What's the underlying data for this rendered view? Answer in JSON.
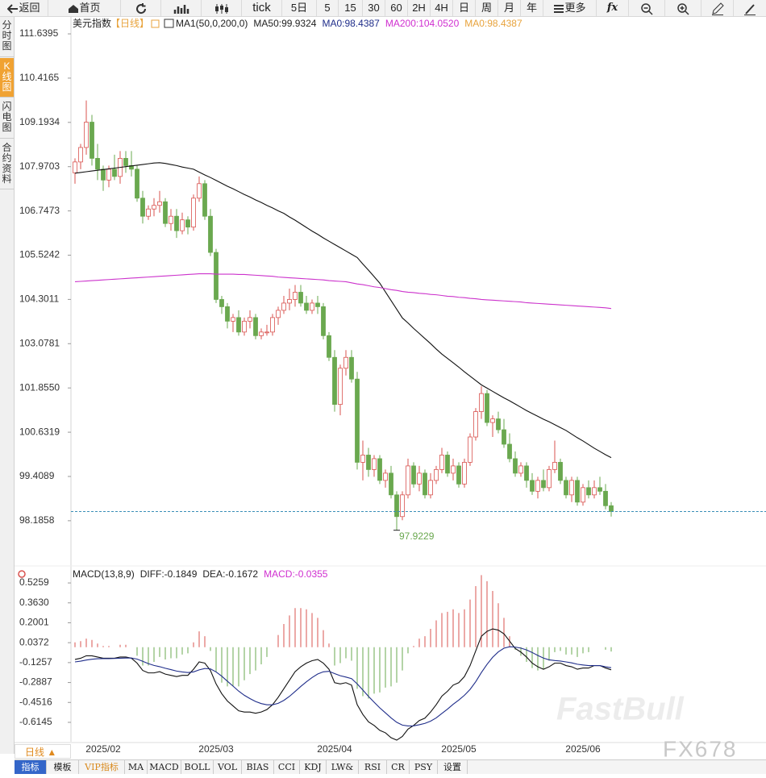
{
  "toolbar": [
    "返回",
    "首页",
    "tick",
    "5日",
    "5",
    "15",
    "30",
    "60",
    "2H",
    "4H",
    "日",
    "周",
    "月",
    "年",
    "更多",
    "fx"
  ],
  "sidebar": [
    "分时图",
    "K线图",
    "闪电图",
    "合约资料"
  ],
  "footer": {
    "period": "日线 ▲",
    "tabs": [
      "指标",
      "模板",
      "VIP指标",
      "MA",
      "MACD",
      "BOLL",
      "VOL",
      "BIAS",
      "CCI",
      "KDJ",
      "LW&",
      "RSI",
      "CR",
      "PSY",
      "设置"
    ]
  },
  "watermark": [
    "FastBull",
    "FX678"
  ],
  "chart_data": [
    {
      "type": "candlestick",
      "title": "美元指数",
      "period": "【日线】",
      "legend": [
        {
          "text": "MA1(50,0,200,0)",
          "color": "#222222"
        },
        {
          "text": "MA50:99.9324",
          "color": "#222222"
        },
        {
          "text": "MA0:98.4387",
          "color": "#1f2d8a"
        },
        {
          "text": "MA200:104.0520",
          "color": "#d02fd0"
        },
        {
          "text": "MA0:98.4387",
          "color": "#e8a33c"
        }
      ],
      "up_color": "#d9534f",
      "down_color": "#6aa84f",
      "categories": [
        null,
        null,
        null,
        null,
        null,
        "2025/02",
        null,
        null,
        null,
        null,
        null,
        null,
        null,
        null,
        null,
        null,
        null,
        null,
        null,
        null,
        null,
        null,
        null,
        null,
        null,
        "2025/03",
        null,
        null,
        null,
        null,
        null,
        null,
        null,
        null,
        null,
        null,
        null,
        null,
        null,
        null,
        null,
        null,
        null,
        null,
        null,
        null,
        "2025/04",
        null,
        null,
        null,
        null,
        null,
        null,
        null,
        null,
        null,
        null,
        null,
        null,
        null,
        null,
        null,
        null,
        null,
        null,
        null,
        null,
        null,
        "2025/05",
        null,
        null,
        null,
        null,
        null,
        null,
        null,
        null,
        null,
        null,
        null,
        null,
        null,
        null,
        null,
        null,
        null,
        null,
        null,
        null,
        null,
        "2025/06",
        null,
        null,
        null,
        null,
        null
      ],
      "open": [
        107.8,
        108.1,
        108.5,
        109.2,
        108.2,
        107.9,
        107.6,
        107.9,
        107.7,
        108.2,
        108.0,
        107.9,
        107.1,
        106.6,
        106.8,
        106.9,
        107.0,
        106.4,
        106.6,
        106.2,
        106.5,
        106.3,
        107.1,
        107.5,
        106.6,
        105.6,
        104.3,
        104.1,
        103.7,
        103.8,
        103.4,
        103.7,
        103.8,
        103.3,
        103.4,
        103.4,
        103.8,
        104.0,
        104.2,
        104.3,
        104.5,
        104.2,
        104.0,
        104.2,
        104.1,
        103.3,
        102.7,
        101.4,
        102.4,
        102.7,
        102.1,
        99.8,
        100.0,
        99.6,
        99.9,
        99.3,
        99.5,
        98.9,
        98.3,
        98.9,
        99.7,
        99.2,
        99.5,
        98.9,
        99.3,
        99.6,
        100.0,
        99.5,
        99.7,
        99.2,
        99.8,
        100.5,
        101.2,
        101.7,
        100.9,
        101.0,
        100.7,
        100.3,
        99.9,
        99.5,
        99.7,
        99.3,
        99.0,
        99.3,
        99.1,
        99.6,
        99.8,
        99.3,
        98.9,
        99.3,
        98.7,
        99.1,
        98.9,
        99.1,
        99.0,
        98.6
      ],
      "high": [
        108.2,
        108.6,
        109.8,
        109.4,
        108.6,
        108.0,
        108.0,
        108.3,
        108.4,
        108.4,
        108.4,
        108.0,
        107.3,
        106.9,
        107.1,
        107.3,
        107.1,
        106.8,
        106.8,
        106.7,
        106.6,
        107.2,
        107.7,
        107.6,
        106.8,
        105.7,
        104.4,
        104.2,
        103.9,
        104.0,
        103.8,
        104.0,
        103.9,
        103.5,
        103.6,
        103.9,
        104.1,
        104.4,
        104.6,
        104.7,
        104.7,
        104.4,
        104.3,
        104.4,
        104.2,
        103.4,
        102.9,
        102.5,
        102.9,
        102.9,
        102.3,
        100.4,
        100.2,
        100.0,
        100.0,
        99.6,
        99.7,
        99.0,
        99.0,
        99.9,
        99.8,
        99.7,
        99.6,
        99.5,
        99.7,
        100.2,
        100.1,
        99.9,
        99.8,
        99.9,
        100.6,
        101.3,
        101.9,
        101.8,
        101.1,
        101.2,
        101.0,
        100.6,
        100.1,
        99.8,
        99.8,
        99.5,
        99.4,
        99.6,
        99.7,
        100.4,
        99.9,
        99.4,
        99.4,
        99.4,
        99.2,
        99.3,
        99.3,
        99.4,
        99.2,
        98.7
      ],
      "low": [
        107.5,
        107.9,
        108.3,
        108.0,
        107.6,
        107.3,
        107.4,
        107.6,
        107.5,
        107.8,
        107.7,
        107.0,
        106.4,
        106.5,
        106.6,
        106.7,
        106.3,
        106.2,
        106.0,
        106.1,
        106.1,
        106.2,
        107.0,
        106.5,
        105.5,
        104.2,
        103.9,
        103.5,
        103.4,
        103.3,
        103.3,
        103.5,
        103.2,
        103.2,
        103.3,
        103.3,
        103.6,
        103.9,
        104.0,
        104.1,
        104.1,
        103.9,
        103.9,
        103.9,
        103.2,
        102.6,
        101.2,
        101.1,
        102.2,
        102.0,
        99.6,
        99.3,
        99.4,
        99.4,
        99.2,
        99.1,
        98.8,
        97.9229,
        98.2,
        98.8,
        99.1,
        99.0,
        98.8,
        98.8,
        99.2,
        99.5,
        99.4,
        99.3,
        99.1,
        99.1,
        99.7,
        100.4,
        101.0,
        100.8,
        100.5,
        100.6,
        100.2,
        99.8,
        99.4,
        99.4,
        99.1,
        98.9,
        98.8,
        99.0,
        99.0,
        99.5,
        99.2,
        98.8,
        98.7,
        98.6,
        98.6,
        98.8,
        98.8,
        98.9,
        98.5,
        98.3
      ],
      "close": [
        108.1,
        108.5,
        109.2,
        108.2,
        107.9,
        107.6,
        107.9,
        107.7,
        108.2,
        108.0,
        107.9,
        107.1,
        106.6,
        106.8,
        106.9,
        107.0,
        106.4,
        106.6,
        106.2,
        106.5,
        106.3,
        107.1,
        107.5,
        106.6,
        105.6,
        104.3,
        104.1,
        103.7,
        103.8,
        103.4,
        103.7,
        103.8,
        103.3,
        103.4,
        103.4,
        103.8,
        104.0,
        104.2,
        104.3,
        104.5,
        104.2,
        104.0,
        104.2,
        104.1,
        103.3,
        102.7,
        101.4,
        102.4,
        102.7,
        102.1,
        99.8,
        100.0,
        99.6,
        99.9,
        99.3,
        99.5,
        98.9,
        98.3,
        98.9,
        99.7,
        99.2,
        99.5,
        98.9,
        99.3,
        99.6,
        100.0,
        99.5,
        99.7,
        99.2,
        99.8,
        100.5,
        101.2,
        101.7,
        100.9,
        101.0,
        100.7,
        100.3,
        99.9,
        99.5,
        99.7,
        99.3,
        99.0,
        99.3,
        99.1,
        99.6,
        99.8,
        99.3,
        98.9,
        99.3,
        98.7,
        99.1,
        98.9,
        99.1,
        99.0,
        98.6,
        98.44
      ],
      "ma_lines": [
        {
          "color": "#111111",
          "values": [
            107.79,
            107.81,
            107.83,
            107.85,
            107.87,
            107.89,
            107.91,
            107.93,
            107.95,
            107.97,
            107.99,
            108.01,
            108.03,
            108.05,
            108.07,
            108.08,
            108.06,
            108.03,
            108.0,
            107.96,
            107.93,
            107.9,
            107.82,
            107.74,
            107.67,
            107.59,
            107.51,
            107.43,
            107.36,
            107.28,
            107.2,
            107.13,
            107.05,
            106.98,
            106.9,
            106.83,
            106.75,
            106.68,
            106.58,
            106.49,
            106.39,
            106.29,
            106.19,
            106.1,
            106.0,
            105.91,
            105.82,
            105.73,
            105.64,
            105.55,
            105.46,
            105.28,
            105.11,
            104.93,
            104.75,
            104.51,
            104.27,
            104.03,
            103.79,
            103.65,
            103.5,
            103.36,
            103.22,
            103.08,
            102.93,
            102.79,
            102.67,
            102.55,
            102.43,
            102.3,
            102.18,
            102.06,
            101.94,
            101.85,
            101.76,
            101.67,
            101.58,
            101.5,
            101.41,
            101.32,
            101.23,
            101.15,
            101.07,
            100.99,
            100.92,
            100.84,
            100.76,
            100.68,
            100.58,
            100.48,
            100.39,
            100.29,
            100.19,
            100.1,
            100.01,
            99.93
          ]
        },
        {
          "color": "#cc33cc",
          "values": [
            104.79,
            104.8,
            104.81,
            104.82,
            104.83,
            104.84,
            104.85,
            104.86,
            104.87,
            104.88,
            104.89,
            104.9,
            104.91,
            104.92,
            104.93,
            104.94,
            104.95,
            104.96,
            104.97,
            104.98,
            104.99,
            105.0,
            105.01,
            105.01,
            105.01,
            105.0,
            105.0,
            105.0,
            105.0,
            104.99,
            104.99,
            104.98,
            104.97,
            104.96,
            104.95,
            104.94,
            104.92,
            104.91,
            104.9,
            104.89,
            104.88,
            104.87,
            104.86,
            104.85,
            104.84,
            104.82,
            104.81,
            104.8,
            104.79,
            104.76,
            104.73,
            104.71,
            104.68,
            104.65,
            104.63,
            104.6,
            104.57,
            104.55,
            104.52,
            104.5,
            104.49,
            104.47,
            104.46,
            104.44,
            104.43,
            104.41,
            104.39,
            104.38,
            104.36,
            104.35,
            104.33,
            104.32,
            104.3,
            104.29,
            104.28,
            104.27,
            104.26,
            104.25,
            104.24,
            104.23,
            104.21,
            104.2,
            104.19,
            104.18,
            104.17,
            104.16,
            104.15,
            104.14,
            104.13,
            104.12,
            104.11,
            104.1,
            104.09,
            104.08,
            104.07,
            104.05
          ]
        }
      ],
      "price_line": 98.4387,
      "ylim": [
        96.98,
        112.13
      ],
      "yticks": [
        111.6395,
        110.4165,
        109.1934,
        107.9703,
        106.7473,
        105.5242,
        104.3011,
        103.0781,
        {
          "value": 101.855,
          "label": "101.8550"
        },
        100.6319,
        99.4089,
        98.1858
      ]
    },
    {
      "type": "macd",
      "legend": [
        {
          "text": "MACD(13,8,9)",
          "color": "#222222"
        },
        {
          "text": "DIFF:-0.1849",
          "color": "#222222"
        },
        {
          "text": "DEA:-0.1672",
          "color": "#222222"
        },
        {
          "text": "MACD:-0.0355",
          "color": "#d02fd0"
        }
      ],
      "series": [
        {
          "color": "#111111",
          "values": [
            -0.1,
            -0.09,
            -0.07,
            -0.07,
            -0.08,
            -0.09,
            -0.09,
            -0.09,
            -0.08,
            -0.08,
            -0.09,
            -0.13,
            -0.19,
            -0.21,
            -0.21,
            -0.2,
            -0.22,
            -0.23,
            -0.24,
            -0.23,
            -0.23,
            -0.18,
            -0.12,
            -0.13,
            -0.19,
            -0.3,
            -0.38,
            -0.44,
            -0.48,
            -0.52,
            -0.53,
            -0.53,
            -0.54,
            -0.53,
            -0.51,
            -0.47,
            -0.41,
            -0.34,
            -0.27,
            -0.2,
            -0.16,
            -0.13,
            -0.11,
            -0.1,
            -0.13,
            -0.18,
            -0.29,
            -0.3,
            -0.29,
            -0.31,
            -0.47,
            -0.55,
            -0.61,
            -0.64,
            -0.68,
            -0.7,
            -0.74,
            -0.76,
            -0.73,
            -0.67,
            -0.64,
            -0.6,
            -0.58,
            -0.53,
            -0.47,
            -0.4,
            -0.36,
            -0.31,
            -0.29,
            -0.24,
            -0.15,
            -0.03,
            0.09,
            0.13,
            0.15,
            0.14,
            0.11,
            0.05,
            -0.01,
            -0.04,
            -0.08,
            -0.13,
            -0.16,
            -0.18,
            -0.16,
            -0.13,
            -0.13,
            -0.15,
            -0.16,
            -0.18,
            -0.17,
            -0.17,
            -0.15,
            -0.15,
            -0.17,
            -0.1849
          ]
        },
        {
          "color": "#1f2d8a",
          "values": [
            -0.12,
            -0.114,
            -0.105,
            -0.098,
            -0.094,
            -0.093,
            -0.093,
            -0.092,
            -0.09,
            -0.088,
            -0.088,
            -0.097,
            -0.115,
            -0.134,
            -0.149,
            -0.159,
            -0.172,
            -0.183,
            -0.195,
            -0.202,
            -0.207,
            -0.202,
            -0.185,
            -0.174,
            -0.177,
            -0.202,
            -0.237,
            -0.278,
            -0.318,
            -0.359,
            -0.393,
            -0.42,
            -0.444,
            -0.461,
            -0.471,
            -0.471,
            -0.459,
            -0.435,
            -0.402,
            -0.362,
            -0.321,
            -0.283,
            -0.248,
            -0.219,
            -0.201,
            -0.197,
            -0.216,
            -0.233,
            -0.244,
            -0.257,
            -0.3,
            -0.35,
            -0.402,
            -0.45,
            -0.496,
            -0.537,
            -0.578,
            -0.614,
            -0.637,
            -0.644,
            -0.643,
            -0.634,
            -0.623,
            -0.605,
            -0.578,
            -0.542,
            -0.506,
            -0.467,
            -0.432,
            -0.393,
            -0.345,
            -0.282,
            -0.207,
            -0.14,
            -0.082,
            -0.038,
            -0.008,
            0.004,
            0.001,
            -0.007,
            -0.022,
            -0.043,
            -0.067,
            -0.089,
            -0.103,
            -0.109,
            -0.113,
            -0.12,
            -0.128,
            -0.139,
            -0.145,
            -0.15,
            -0.15,
            -0.15,
            -0.16,
            -0.1672
          ]
        }
      ],
      "histogram": {
        "up_color": "#d9534f",
        "down_color": "#6aa84f",
        "values": [
          0.04,
          0.05,
          0.07,
          0.06,
          0.03,
          0.01,
          0.01,
          0,
          0.02,
          0.02,
          0,
          -0.07,
          -0.15,
          -0.15,
          -0.12,
          -0.08,
          -0.1,
          -0.09,
          -0.09,
          -0.06,
          -0.05,
          0.04,
          0.13,
          0.09,
          -0.03,
          -0.2,
          -0.29,
          -0.32,
          -0.32,
          -0.32,
          -0.27,
          -0.22,
          -0.19,
          -0.14,
          -0.08,
          0,
          0.1,
          0.19,
          0.26,
          0.32,
          0.32,
          0.31,
          0.28,
          0.24,
          0.14,
          0.03,
          -0.15,
          -0.13,
          -0.09,
          -0.11,
          -0.34,
          -0.4,
          -0.42,
          -0.38,
          -0.37,
          -0.33,
          -0.32,
          -0.29,
          -0.19,
          -0.05,
          0.01,
          0.07,
          0.09,
          0.15,
          0.22,
          0.28,
          0.29,
          0.31,
          0.28,
          0.31,
          0.39,
          0.5,
          0.59,
          0.54,
          0.46,
          0.36,
          0.24,
          0.09,
          -0.02,
          -0.07,
          -0.12,
          -0.17,
          -0.19,
          -0.18,
          -0.11,
          -0.04,
          -0.03,
          -0.06,
          -0.06,
          -0.08,
          -0.05,
          -0.04,
          0,
          0,
          -0.02,
          -0.0355
        ]
      },
      "ylim": [
        -0.773,
        0.645
      ],
      "yticks": [
        0.5259,
        {
          "value": 0.363,
          "label": "0.3630"
        },
        0.2001,
        0.0372,
        -0.1257,
        -0.2887,
        -0.4516,
        -0.6145
      ]
    }
  ]
}
